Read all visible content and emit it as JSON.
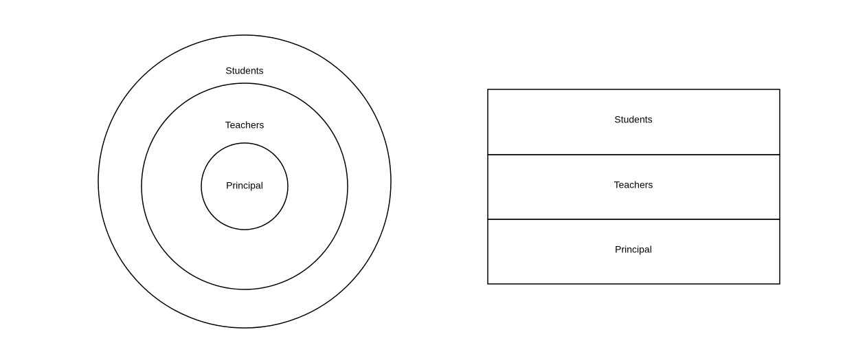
{
  "concentric_diagram": {
    "outer_label": "Students",
    "middle_label": "Teachers",
    "inner_label": "Principal"
  },
  "stacked_diagram": {
    "rows": [
      {
        "label": "Students"
      },
      {
        "label": "Teachers"
      },
      {
        "label": "Principal"
      }
    ]
  },
  "colors": {
    "stroke": "#000000",
    "background": "#ffffff",
    "text": "#000000"
  }
}
